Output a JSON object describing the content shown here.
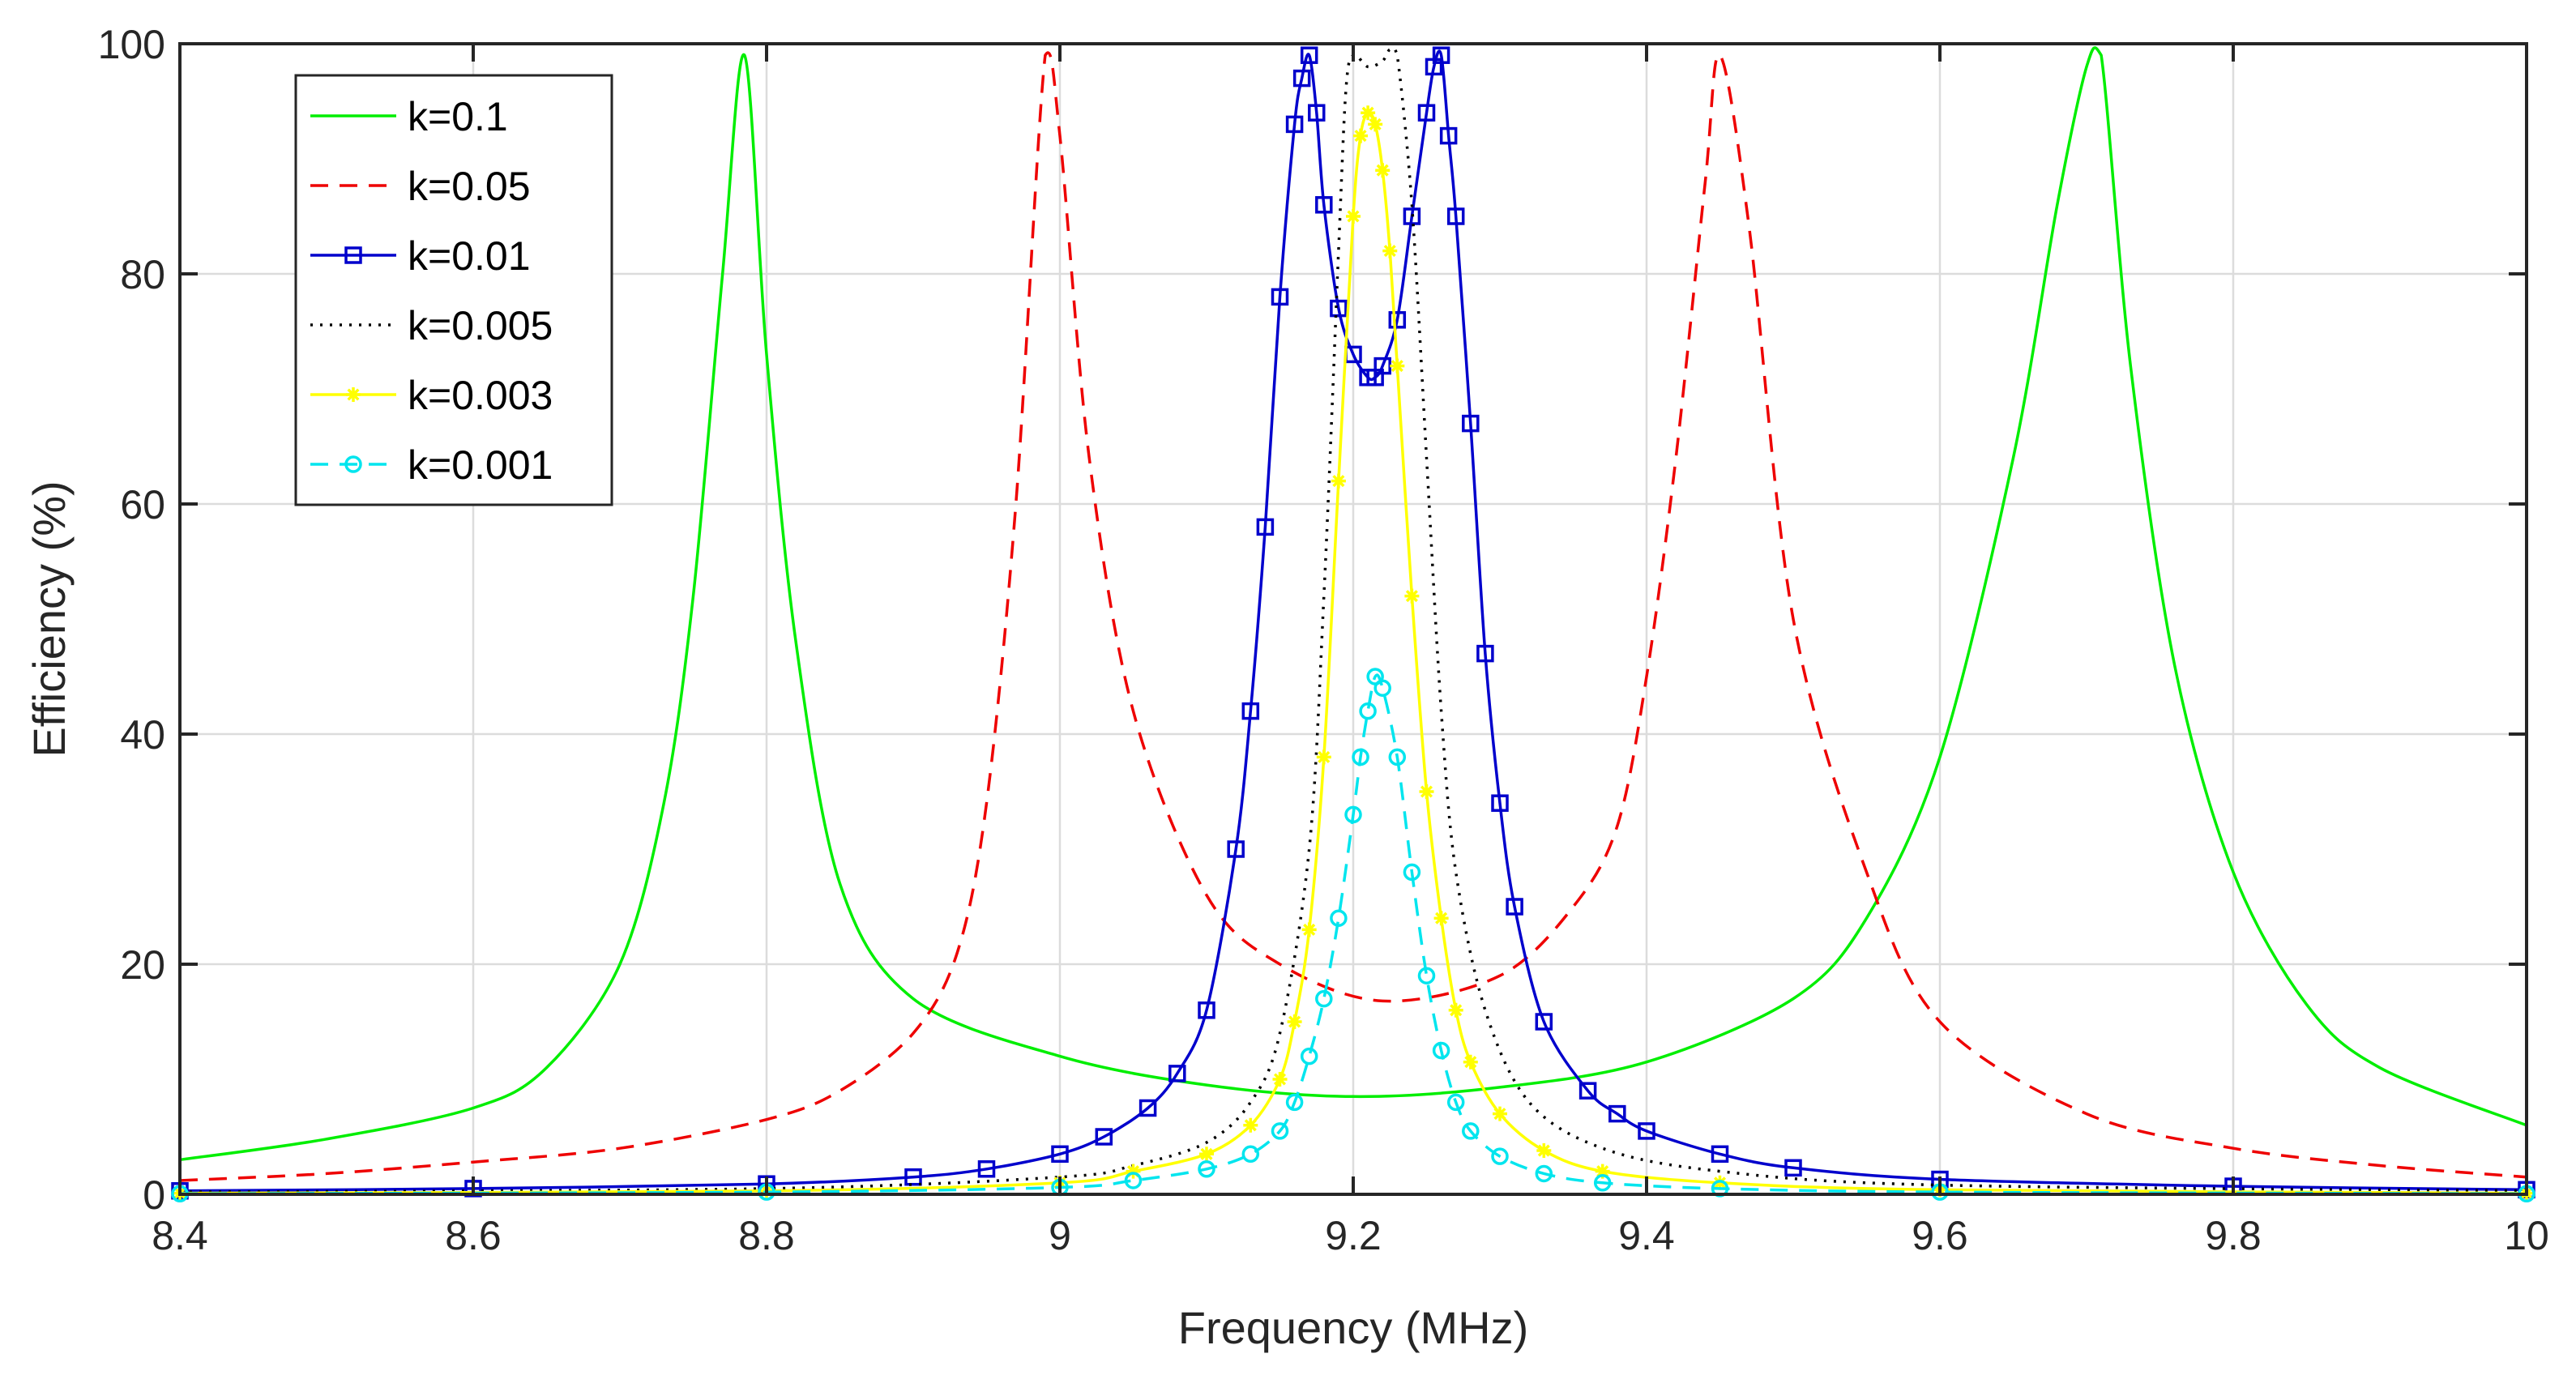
{
  "chart_data": {
    "type": "line",
    "xlabel": "Frequency (MHz)",
    "ylabel": "Efficiency (%)",
    "xlim": [
      8.4,
      10
    ],
    "ylim": [
      0,
      100
    ],
    "xticks": [
      8.4,
      8.6,
      8.8,
      9,
      9.2,
      9.4,
      9.6,
      9.8,
      10
    ],
    "xtick_labels": [
      "8.4",
      "8.6",
      "8.8",
      "9",
      "9.2",
      "9.4",
      "9.6",
      "9.8",
      "10"
    ],
    "yticks": [
      0,
      20,
      40,
      60,
      80,
      100
    ],
    "ytick_labels": [
      "0",
      "20",
      "40",
      "60",
      "80",
      "100"
    ],
    "grid": true,
    "legend_position": "top-left",
    "series": [
      {
        "name": "k=0.1",
        "color": "#00ee00",
        "line": "solid",
        "marker": "none",
        "x": [
          8.4,
          8.5,
          8.6,
          8.65,
          8.7,
          8.73,
          8.75,
          8.77,
          8.785,
          8.8,
          8.82,
          8.85,
          8.9,
          9.0,
          9.1,
          9.2,
          9.3,
          9.4,
          9.5,
          9.55,
          9.6,
          9.65,
          9.68,
          9.7,
          9.71,
          9.73,
          9.76,
          9.8,
          9.85,
          9.9,
          10.0
        ],
        "y": [
          3,
          4.8,
          7.5,
          11,
          20,
          34,
          52,
          80,
          99,
          73,
          48,
          27,
          17,
          12,
          9.5,
          8.5,
          9.3,
          11.5,
          17,
          24,
          38,
          64,
          86,
          98,
          99,
          72,
          46,
          28,
          16.5,
          11,
          6
        ]
      },
      {
        "name": "k=0.05",
        "color": "#ee0000",
        "line": "dashed",
        "marker": "none",
        "x": [
          8.4,
          8.5,
          8.6,
          8.7,
          8.8,
          8.85,
          8.9,
          8.93,
          8.95,
          8.97,
          8.99,
          9.0,
          9.02,
          9.05,
          9.1,
          9.15,
          9.22,
          9.3,
          9.35,
          9.38,
          9.4,
          9.42,
          9.44,
          9.45,
          9.47,
          9.5,
          9.55,
          9.6,
          9.7,
          9.8,
          9.9,
          10.0
        ],
        "y": [
          1.2,
          1.8,
          2.8,
          4,
          6.5,
          9,
          14,
          21,
          34,
          60,
          99,
          92,
          64,
          42,
          26,
          20,
          16.8,
          19,
          25,
          32,
          45,
          64,
          88,
          99,
          84,
          50,
          28,
          15,
          7,
          4,
          2.5,
          1.5
        ]
      },
      {
        "name": "k=0.01",
        "color": "#0000cc",
        "line": "solid",
        "marker": "square",
        "x": [
          8.4,
          8.6,
          8.8,
          8.9,
          8.95,
          9.0,
          9.03,
          9.06,
          9.08,
          9.1,
          9.12,
          9.13,
          9.14,
          9.15,
          9.16,
          9.165,
          9.17,
          9.175,
          9.18,
          9.19,
          9.2,
          9.21,
          9.215,
          9.22,
          9.23,
          9.24,
          9.25,
          9.255,
          9.26,
          9.265,
          9.27,
          9.28,
          9.29,
          9.3,
          9.31,
          9.33,
          9.36,
          9.38,
          9.4,
          9.45,
          9.5,
          9.6,
          9.8,
          10.0
        ],
        "y": [
          0.3,
          0.5,
          0.9,
          1.5,
          2.2,
          3.5,
          5,
          7.5,
          10.5,
          16,
          30,
          42,
          58,
          78,
          93,
          97,
          99,
          94,
          86,
          77,
          73,
          71,
          71,
          72,
          76,
          85,
          94,
          98,
          99,
          92,
          85,
          67,
          47,
          34,
          25,
          15,
          9,
          7,
          5.5,
          3.5,
          2.3,
          1.3,
          0.7,
          0.4
        ]
      },
      {
        "name": "k=0.005",
        "color": "#000000",
        "line": "dotted",
        "marker": "none",
        "x": [
          8.4,
          8.8,
          9.0,
          9.05,
          9.1,
          9.13,
          9.15,
          9.17,
          9.18,
          9.19,
          9.195,
          9.2,
          9.21,
          9.22,
          9.225,
          9.23,
          9.24,
          9.25,
          9.26,
          9.27,
          9.29,
          9.32,
          9.37,
          9.45,
          9.6,
          10.0
        ],
        "y": [
          0.2,
          0.5,
          1.5,
          2.5,
          4.5,
          8,
          14,
          30,
          52,
          82,
          96,
          99,
          98,
          98.5,
          99.5,
          99,
          86,
          64,
          42,
          28,
          16,
          8,
          4,
          2,
          0.8,
          0.3
        ]
      },
      {
        "name": "k=0.003",
        "color": "#ffff00",
        "line": "solid",
        "marker": "star",
        "x": [
          8.4,
          8.8,
          9.0,
          9.05,
          9.1,
          9.13,
          9.15,
          9.16,
          9.17,
          9.18,
          9.19,
          9.2,
          9.205,
          9.21,
          9.215,
          9.22,
          9.225,
          9.23,
          9.24,
          9.25,
          9.26,
          9.27,
          9.28,
          9.3,
          9.33,
          9.37,
          9.45,
          9.6,
          10.0
        ],
        "y": [
          0.1,
          0.3,
          1,
          2,
          3.5,
          6,
          10,
          15,
          23,
          38,
          62,
          85,
          92,
          94,
          93,
          89,
          82,
          72,
          52,
          35,
          24,
          16,
          11.5,
          7,
          3.8,
          2,
          1,
          0.4,
          0.1
        ]
      },
      {
        "name": "k=0.001",
        "color": "#00e5ee",
        "line": "dashed",
        "marker": "circle",
        "x": [
          8.4,
          8.8,
          9.0,
          9.05,
          9.1,
          9.13,
          9.15,
          9.16,
          9.17,
          9.18,
          9.19,
          9.2,
          9.205,
          9.21,
          9.215,
          9.22,
          9.23,
          9.24,
          9.25,
          9.26,
          9.27,
          9.28,
          9.3,
          9.33,
          9.37,
          9.45,
          9.6,
          10.0
        ],
        "y": [
          0.05,
          0.2,
          0.6,
          1.2,
          2.2,
          3.5,
          5.5,
          8,
          12,
          17,
          24,
          33,
          38,
          42,
          45,
          44,
          38,
          28,
          19,
          12.5,
          8,
          5.5,
          3.3,
          1.8,
          1,
          0.5,
          0.2,
          0.05
        ]
      }
    ]
  }
}
